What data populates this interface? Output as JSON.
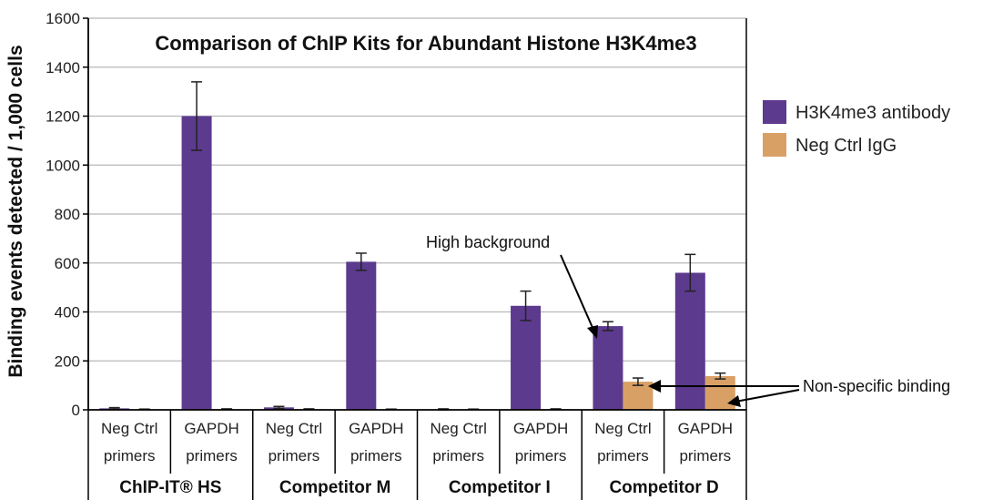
{
  "chart_data": {
    "type": "bar",
    "title": "Comparison of ChIP Kits for Abundant Histone H3K4me3",
    "ylabel": "Binding events detected / 1,000 cells",
    "ylim": [
      0,
      1600
    ],
    "yticks": [
      "0",
      "200",
      "400",
      "600",
      "800",
      "1000",
      "1200",
      "1400",
      "1600"
    ],
    "ytick_values": [
      0,
      200,
      400,
      600,
      800,
      1000,
      1200,
      1400,
      1600
    ],
    "grid": true,
    "legend_position": "right",
    "categories": [
      {
        "line1": "Neg Ctrl",
        "line2": "primers"
      },
      {
        "line1": "GAPDH",
        "line2": "primers"
      },
      {
        "line1": "Neg Ctrl",
        "line2": "primers"
      },
      {
        "line1": "GAPDH",
        "line2": "primers"
      },
      {
        "line1": "Neg Ctrl",
        "line2": "primers"
      },
      {
        "line1": "GAPDH",
        "line2": "primers"
      },
      {
        "line1": "Neg Ctrl",
        "line2": "primers"
      },
      {
        "line1": "GAPDH",
        "line2": "primers"
      }
    ],
    "groups": [
      "ChIP-IT® HS",
      "Competitor M",
      "Competitor I",
      "Competitor D"
    ],
    "series": [
      {
        "name": "H3K4me3 antibody",
        "color": "#5c3a8e",
        "values": [
          6,
          1200,
          10,
          605,
          2,
          425,
          342,
          560
        ],
        "errors": [
          3,
          140,
          4,
          35,
          2,
          60,
          18,
          75
        ]
      },
      {
        "name": "Neg Ctrl IgG",
        "color": "#d9a066",
        "values": [
          2,
          3,
          3,
          2,
          2,
          3,
          115,
          138
        ],
        "errors": [
          1,
          1,
          1,
          1,
          1,
          1,
          15,
          12
        ]
      }
    ],
    "annotations": [
      {
        "text": "High background"
      },
      {
        "text": "Non-specific binding"
      }
    ]
  }
}
